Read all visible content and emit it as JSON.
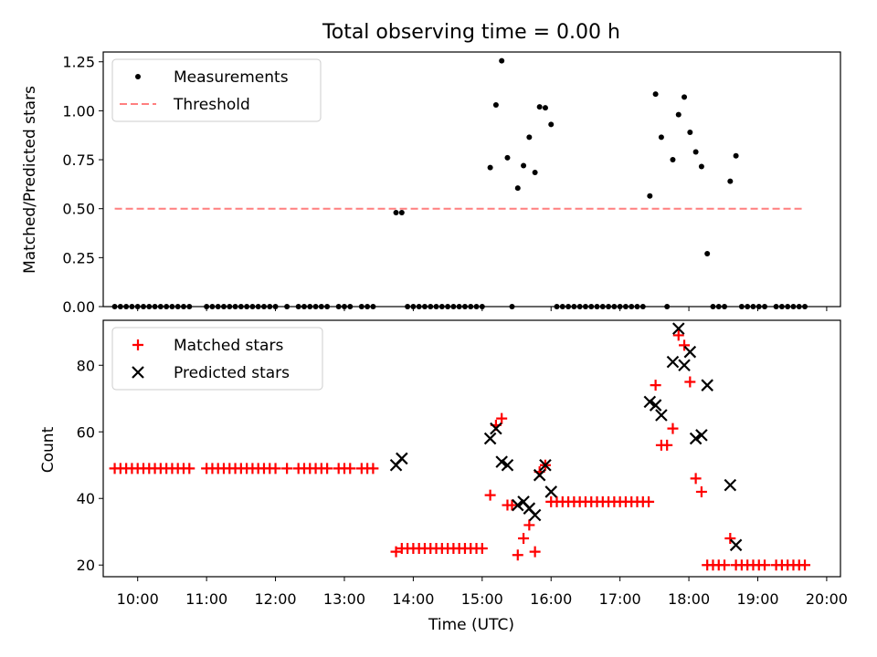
{
  "figure": {
    "title": "Total observing time = 0.00 h",
    "xlabel": "Time (UTC)",
    "x_ticks": [
      "10:00",
      "11:00",
      "12:00",
      "13:00",
      "14:00",
      "15:00",
      "16:00",
      "17:00",
      "18:00",
      "19:00",
      "20:00"
    ]
  },
  "colors": {
    "measurement": "#000000",
    "threshold": "#ff7f7f",
    "matched": "#ff0000",
    "predicted": "#000000"
  },
  "chart_data": [
    {
      "type": "scatter",
      "ylabel": "Matched/Predicted stars",
      "xlim": [
        "09:30",
        "20:12"
      ],
      "ylim": [
        0,
        1.3
      ],
      "y_ticks": [
        "0.00",
        "0.25",
        "0.50",
        "0.75",
        "1.00",
        "1.25"
      ],
      "legend_position": "top-left",
      "series": [
        {
          "name": "Measurements",
          "marker": "dot",
          "points": [
            [
              "09:40",
              0
            ],
            [
              "09:45",
              0
            ],
            [
              "09:50",
              0
            ],
            [
              "09:55",
              0
            ],
            [
              "10:00",
              0
            ],
            [
              "10:05",
              0
            ],
            [
              "10:10",
              0
            ],
            [
              "10:15",
              0
            ],
            [
              "10:20",
              0
            ],
            [
              "10:25",
              0
            ],
            [
              "10:30",
              0
            ],
            [
              "10:35",
              0
            ],
            [
              "10:40",
              0
            ],
            [
              "10:45",
              0
            ],
            [
              "11:00",
              0
            ],
            [
              "11:05",
              0
            ],
            [
              "11:10",
              0
            ],
            [
              "11:15",
              0
            ],
            [
              "11:20",
              0
            ],
            [
              "11:25",
              0
            ],
            [
              "11:30",
              0
            ],
            [
              "11:35",
              0
            ],
            [
              "11:40",
              0
            ],
            [
              "11:45",
              0
            ],
            [
              "11:50",
              0
            ],
            [
              "11:55",
              0
            ],
            [
              "12:00",
              0
            ],
            [
              "12:10",
              0
            ],
            [
              "12:20",
              0
            ],
            [
              "12:25",
              0
            ],
            [
              "12:30",
              0
            ],
            [
              "12:35",
              0
            ],
            [
              "12:40",
              0
            ],
            [
              "12:45",
              0
            ],
            [
              "12:55",
              0
            ],
            [
              "13:00",
              0
            ],
            [
              "13:05",
              0
            ],
            [
              "13:15",
              0
            ],
            [
              "13:20",
              0
            ],
            [
              "13:25",
              0
            ],
            [
              "13:45",
              0.48
            ],
            [
              "13:50",
              0.48
            ],
            [
              "13:55",
              0
            ],
            [
              "14:00",
              0
            ],
            [
              "14:05",
              0
            ],
            [
              "14:10",
              0
            ],
            [
              "14:15",
              0
            ],
            [
              "14:20",
              0
            ],
            [
              "14:25",
              0
            ],
            [
              "14:30",
              0
            ],
            [
              "14:35",
              0
            ],
            [
              "14:40",
              0
            ],
            [
              "14:45",
              0
            ],
            [
              "14:50",
              0
            ],
            [
              "14:55",
              0
            ],
            [
              "15:00",
              0
            ],
            [
              "15:07",
              0.71
            ],
            [
              "15:12",
              1.03
            ],
            [
              "15:17",
              1.255
            ],
            [
              "15:22",
              0.76
            ],
            [
              "15:26",
              0
            ],
            [
              "15:31",
              0.605
            ],
            [
              "15:36",
              0.72
            ],
            [
              "15:41",
              0.865
            ],
            [
              "15:46",
              0.685
            ],
            [
              "15:50",
              1.02
            ],
            [
              "15:55",
              1.015
            ],
            [
              "16:00",
              0.93
            ],
            [
              "16:05",
              0
            ],
            [
              "16:10",
              0
            ],
            [
              "16:15",
              0
            ],
            [
              "16:20",
              0
            ],
            [
              "16:25",
              0
            ],
            [
              "16:30",
              0
            ],
            [
              "16:35",
              0
            ],
            [
              "16:40",
              0
            ],
            [
              "16:45",
              0
            ],
            [
              "16:50",
              0
            ],
            [
              "16:55",
              0
            ],
            [
              "17:00",
              0
            ],
            [
              "17:05",
              0
            ],
            [
              "17:10",
              0
            ],
            [
              "17:15",
              0
            ],
            [
              "17:20",
              0
            ],
            [
              "17:26",
              0.565
            ],
            [
              "17:31",
              1.085
            ],
            [
              "17:36",
              0.865
            ],
            [
              "17:41",
              0
            ],
            [
              "17:46",
              0.75
            ],
            [
              "17:51",
              0.98
            ],
            [
              "17:56",
              1.07
            ],
            [
              "18:01",
              0.89
            ],
            [
              "18:06",
              0.79
            ],
            [
              "18:11",
              0.715
            ],
            [
              "18:16",
              0.27
            ],
            [
              "18:21",
              0
            ],
            [
              "18:26",
              0
            ],
            [
              "18:31",
              0
            ],
            [
              "18:36",
              0.64
            ],
            [
              "18:41",
              0.77
            ],
            [
              "18:46",
              0
            ],
            [
              "18:51",
              0
            ],
            [
              "18:56",
              0
            ],
            [
              "19:01",
              0
            ],
            [
              "19:06",
              0
            ],
            [
              "19:16",
              0
            ],
            [
              "19:21",
              0
            ],
            [
              "19:26",
              0
            ],
            [
              "19:31",
              0
            ],
            [
              "19:36",
              0
            ],
            [
              "19:41",
              0
            ]
          ]
        },
        {
          "name": "Threshold",
          "style": "dashed",
          "points": [
            [
              "09:40",
              0.5
            ],
            [
              "19:40",
              0.5
            ]
          ]
        }
      ]
    },
    {
      "type": "scatter",
      "ylabel": "Count",
      "xlim": [
        "09:30",
        "20:12"
      ],
      "ylim": [
        16.5,
        93.5
      ],
      "y_ticks": [
        "20",
        "40",
        "60",
        "80"
      ],
      "legend_position": "top-left",
      "series": [
        {
          "name": "Matched stars",
          "marker": "plus",
          "points": [
            [
              "09:40",
              49
            ],
            [
              "09:45",
              49
            ],
            [
              "09:50",
              49
            ],
            [
              "09:55",
              49
            ],
            [
              "10:00",
              49
            ],
            [
              "10:05",
              49
            ],
            [
              "10:10",
              49
            ],
            [
              "10:15",
              49
            ],
            [
              "10:20",
              49
            ],
            [
              "10:25",
              49
            ],
            [
              "10:30",
              49
            ],
            [
              "10:35",
              49
            ],
            [
              "10:40",
              49
            ],
            [
              "10:45",
              49
            ],
            [
              "11:00",
              49
            ],
            [
              "11:05",
              49
            ],
            [
              "11:10",
              49
            ],
            [
              "11:15",
              49
            ],
            [
              "11:20",
              49
            ],
            [
              "11:25",
              49
            ],
            [
              "11:30",
              49
            ],
            [
              "11:35",
              49
            ],
            [
              "11:40",
              49
            ],
            [
              "11:45",
              49
            ],
            [
              "11:50",
              49
            ],
            [
              "11:55",
              49
            ],
            [
              "12:00",
              49
            ],
            [
              "12:10",
              49
            ],
            [
              "12:20",
              49
            ],
            [
              "12:25",
              49
            ],
            [
              "12:30",
              49
            ],
            [
              "12:35",
              49
            ],
            [
              "12:40",
              49
            ],
            [
              "12:45",
              49
            ],
            [
              "12:55",
              49
            ],
            [
              "13:00",
              49
            ],
            [
              "13:05",
              49
            ],
            [
              "13:15",
              49
            ],
            [
              "13:20",
              49
            ],
            [
              "13:25",
              49
            ],
            [
              "13:45",
              24
            ],
            [
              "13:50",
              25
            ],
            [
              "13:55",
              25
            ],
            [
              "14:00",
              25
            ],
            [
              "14:05",
              25
            ],
            [
              "14:10",
              25
            ],
            [
              "14:15",
              25
            ],
            [
              "14:20",
              25
            ],
            [
              "14:25",
              25
            ],
            [
              "14:30",
              25
            ],
            [
              "14:35",
              25
            ],
            [
              "14:40",
              25
            ],
            [
              "14:45",
              25
            ],
            [
              "14:50",
              25
            ],
            [
              "14:55",
              25
            ],
            [
              "15:00",
              25
            ],
            [
              "15:07",
              41
            ],
            [
              "15:12",
              62
            ],
            [
              "15:17",
              64
            ],
            [
              "15:22",
              38
            ],
            [
              "15:26",
              38
            ],
            [
              "15:31",
              23
            ],
            [
              "15:36",
              28
            ],
            [
              "15:41",
              32
            ],
            [
              "15:46",
              24
            ],
            [
              "15:50",
              48
            ],
            [
              "15:55",
              50
            ],
            [
              "16:00",
              39
            ],
            [
              "16:05",
              39
            ],
            [
              "16:10",
              39
            ],
            [
              "16:15",
              39
            ],
            [
              "16:20",
              39
            ],
            [
              "16:25",
              39
            ],
            [
              "16:30",
              39
            ],
            [
              "16:35",
              39
            ],
            [
              "16:40",
              39
            ],
            [
              "16:45",
              39
            ],
            [
              "16:50",
              39
            ],
            [
              "16:55",
              39
            ],
            [
              "17:00",
              39
            ],
            [
              "17:05",
              39
            ],
            [
              "17:10",
              39
            ],
            [
              "17:15",
              39
            ],
            [
              "17:20",
              39
            ],
            [
              "17:25",
              39
            ],
            [
              "17:31",
              74
            ],
            [
              "17:36",
              56
            ],
            [
              "17:41",
              56
            ],
            [
              "17:46",
              61
            ],
            [
              "17:51",
              89
            ],
            [
              "17:56",
              86
            ],
            [
              "18:01",
              75
            ],
            [
              "18:06",
              46
            ],
            [
              "18:11",
              42
            ],
            [
              "18:16",
              20
            ],
            [
              "18:21",
              20
            ],
            [
              "18:26",
              20
            ],
            [
              "18:31",
              20
            ],
            [
              "18:36",
              28
            ],
            [
              "18:41",
              20
            ],
            [
              "18:46",
              20
            ],
            [
              "18:51",
              20
            ],
            [
              "18:56",
              20
            ],
            [
              "19:01",
              20
            ],
            [
              "19:06",
              20
            ],
            [
              "19:16",
              20
            ],
            [
              "19:21",
              20
            ],
            [
              "19:26",
              20
            ],
            [
              "19:31",
              20
            ],
            [
              "19:36",
              20
            ],
            [
              "19:41",
              20
            ]
          ]
        },
        {
          "name": "Predicted stars",
          "marker": "x",
          "points": [
            [
              "13:45",
              50
            ],
            [
              "13:50",
              52
            ],
            [
              "15:07",
              58
            ],
            [
              "15:12",
              61
            ],
            [
              "15:17",
              51
            ],
            [
              "15:22",
              50
            ],
            [
              "15:31",
              38
            ],
            [
              "15:36",
              39
            ],
            [
              "15:41",
              37
            ],
            [
              "15:46",
              35
            ],
            [
              "15:50",
              47
            ],
            [
              "15:55",
              50
            ],
            [
              "16:00",
              42
            ],
            [
              "17:26",
              69
            ],
            [
              "17:31",
              68
            ],
            [
              "17:36",
              65
            ],
            [
              "17:46",
              81
            ],
            [
              "17:51",
              91
            ],
            [
              "17:56",
              80
            ],
            [
              "18:01",
              84
            ],
            [
              "18:06",
              58
            ],
            [
              "18:11",
              59
            ],
            [
              "18:16",
              74
            ],
            [
              "18:36",
              44
            ],
            [
              "18:41",
              26
            ]
          ]
        }
      ]
    }
  ]
}
